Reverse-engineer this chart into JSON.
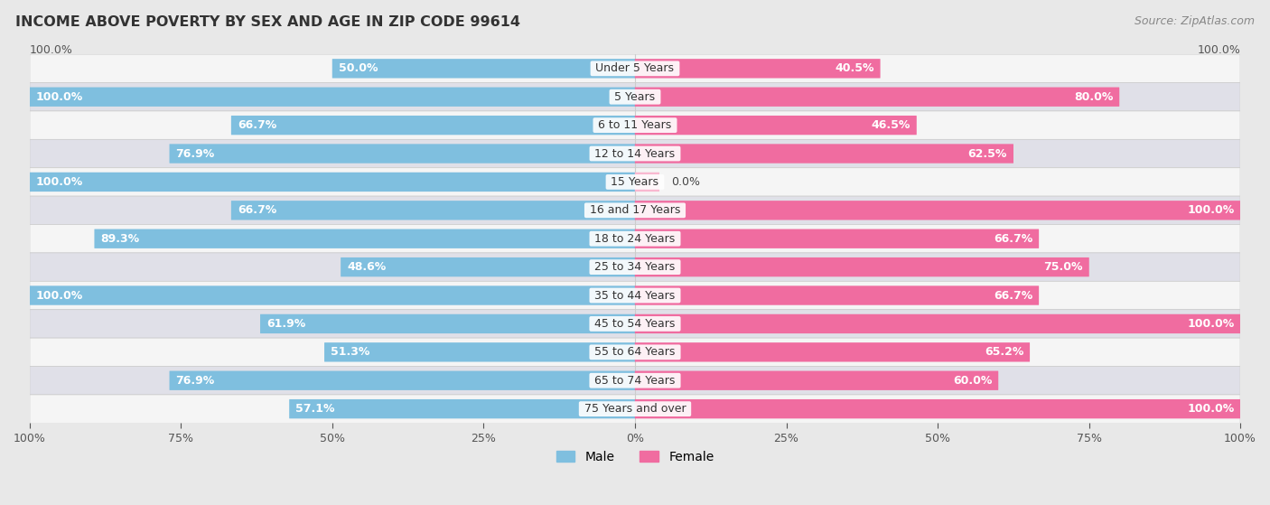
{
  "title": "INCOME ABOVE POVERTY BY SEX AND AGE IN ZIP CODE 99614",
  "source": "Source: ZipAtlas.com",
  "categories": [
    "Under 5 Years",
    "5 Years",
    "6 to 11 Years",
    "12 to 14 Years",
    "15 Years",
    "16 and 17 Years",
    "18 to 24 Years",
    "25 to 34 Years",
    "35 to 44 Years",
    "45 to 54 Years",
    "55 to 64 Years",
    "65 to 74 Years",
    "75 Years and over"
  ],
  "male_values": [
    50.0,
    100.0,
    66.7,
    76.9,
    100.0,
    66.7,
    89.3,
    48.6,
    100.0,
    61.9,
    51.3,
    76.9,
    57.1
  ],
  "female_values": [
    40.5,
    80.0,
    46.5,
    62.5,
    0.0,
    100.0,
    66.7,
    75.0,
    66.7,
    100.0,
    65.2,
    60.0,
    100.0
  ],
  "male_color": "#7fbfdf",
  "female_color": "#f06ca0",
  "male_label": "Male",
  "female_label": "Female",
  "bg_color": "#e8e8e8",
  "row_color_light": "#f5f5f5",
  "row_color_dark": "#e0e0e8",
  "xlim": 100.0,
  "title_fontsize": 11.5,
  "source_fontsize": 9,
  "label_fontsize": 9,
  "tick_fontsize": 9,
  "legend_fontsize": 10
}
